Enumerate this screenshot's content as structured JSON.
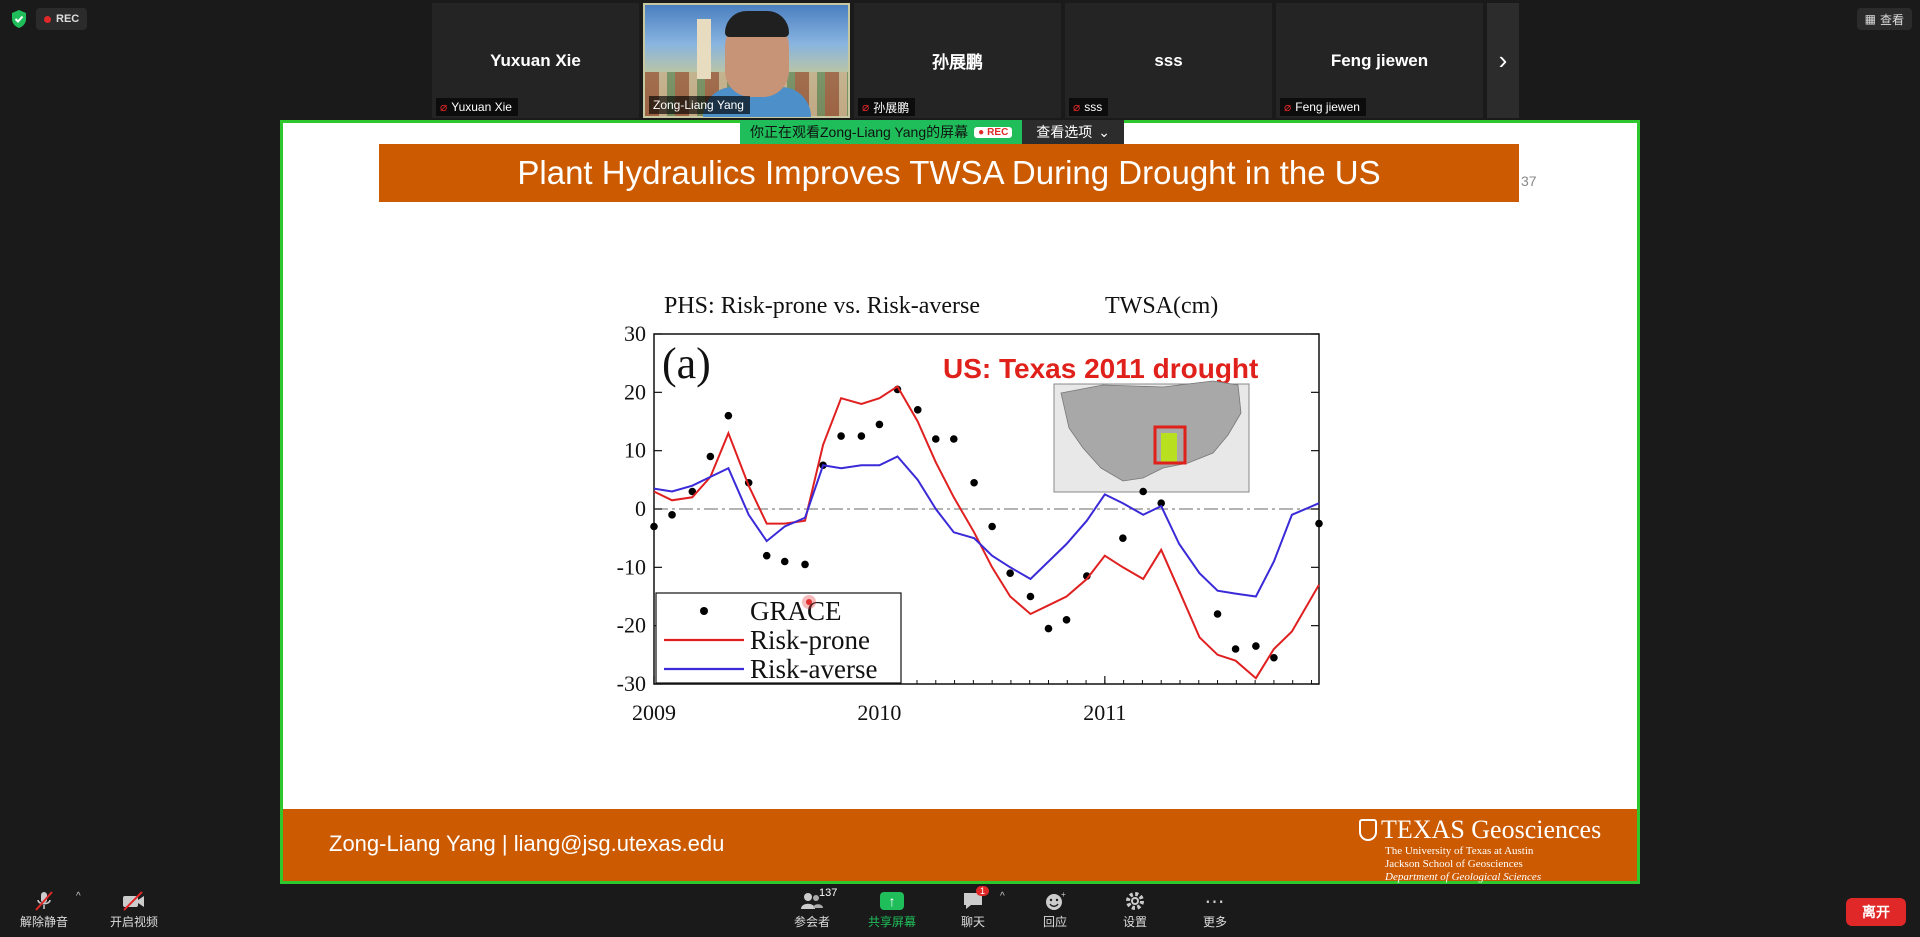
{
  "top": {
    "rec_label": "REC",
    "view_label": "查看"
  },
  "participants": [
    {
      "name": "Yuxuan Xie",
      "label": "Yuxuan Xie"
    },
    {
      "name": "",
      "label": "Zong-Liang Yang"
    },
    {
      "name": "孙展鹏",
      "label": "孙展鹏"
    },
    {
      "name": "sss",
      "label": "sss"
    },
    {
      "name": "Feng jiewen",
      "label": "Feng jiewen"
    }
  ],
  "banner": {
    "viewing_text": "你正在观看Zong-Liang Yang的屏幕",
    "rec": "REC",
    "options": "查看选项"
  },
  "slide": {
    "title": "Plant Hydraulics Improves TWSA During Drought in the US",
    "page_number": "37",
    "footer_contact": "Zong-Liang Yang  |  liang@jsg.utexas.edu",
    "logo_main": "TEXAS Geosciences",
    "logo_lines": [
      "The University of Texas at Austin",
      "Jackson School of Geosciences",
      "Department of Geological Sciences"
    ]
  },
  "chart_data": {
    "type": "line",
    "title": "PHS: Risk-prone vs. Risk-averse",
    "unit_label": "TWSA(cm)",
    "panel_label": "(a)",
    "inset_label": "US: Texas 2011 drought",
    "xlim": [
      2009.0,
      2011.95
    ],
    "ylim": [
      -30,
      30
    ],
    "xticks": [
      "2009",
      "2010",
      "2011"
    ],
    "yticks": [
      "30",
      "20",
      "10",
      "0",
      "-10",
      "-20",
      "-30"
    ],
    "zero_line": true,
    "colors": {
      "GRACE": "#000000",
      "Risk-prone": "#e02020",
      "Risk-averse": "#3a2ad8"
    },
    "series": [
      {
        "name": "GRACE",
        "style": "points",
        "x": [
          2009.0,
          2009.08,
          2009.17,
          2009.25,
          2009.33,
          2009.42,
          2009.5,
          2009.58,
          2009.67,
          2009.75,
          2009.83,
          2009.92,
          2010.0,
          2010.08,
          2010.17,
          2010.25,
          2010.33,
          2010.42,
          2010.5,
          2010.58,
          2010.67,
          2010.75,
          2010.83,
          2010.92,
          2011.08,
          2011.17,
          2011.25,
          2011.5,
          2011.58,
          2011.67,
          2011.75,
          2011.95
        ],
        "y": [
          -3,
          -1,
          3,
          9,
          16,
          4.5,
          -8,
          -9,
          -9.5,
          7.5,
          12.5,
          12.5,
          14.5,
          20.5,
          17,
          12,
          12,
          4.5,
          -3,
          -11,
          -15,
          -20.5,
          -19,
          -11.5,
          -5,
          3,
          1,
          -18,
          -24,
          -23.5,
          -25.5,
          -2.5
        ]
      },
      {
        "name": "Risk-prone",
        "style": "line",
        "x": [
          2009.0,
          2009.08,
          2009.17,
          2009.25,
          2009.33,
          2009.42,
          2009.5,
          2009.58,
          2009.67,
          2009.75,
          2009.83,
          2009.92,
          2010.0,
          2010.08,
          2010.17,
          2010.25,
          2010.33,
          2010.42,
          2010.5,
          2010.58,
          2010.67,
          2010.75,
          2010.83,
          2010.92,
          2011.0,
          2011.08,
          2011.17,
          2011.25,
          2011.33,
          2011.42,
          2011.5,
          2011.58,
          2011.67,
          2011.75,
          2011.83,
          2011.95
        ],
        "y": [
          3,
          1.5,
          2,
          5.5,
          13,
          4,
          -2.5,
          -2.5,
          -2,
          11,
          19,
          18,
          19,
          21,
          15,
          8,
          2,
          -4,
          -10,
          -15,
          -18,
          -16.5,
          -15,
          -12,
          -8,
          -10,
          -12,
          -7,
          -14,
          -22,
          -25,
          -26,
          -29,
          -24,
          -21,
          -13
        ]
      },
      {
        "name": "Risk-averse",
        "style": "line",
        "x": [
          2009.0,
          2009.08,
          2009.17,
          2009.25,
          2009.33,
          2009.42,
          2009.5,
          2009.58,
          2009.67,
          2009.75,
          2009.83,
          2009.92,
          2010.0,
          2010.08,
          2010.17,
          2010.25,
          2010.33,
          2010.42,
          2010.5,
          2010.58,
          2010.67,
          2010.75,
          2010.83,
          2010.92,
          2011.0,
          2011.08,
          2011.17,
          2011.25,
          2011.33,
          2011.42,
          2011.5,
          2011.58,
          2011.67,
          2011.75,
          2011.83,
          2011.95
        ],
        "y": [
          3.5,
          3,
          4,
          5.5,
          7,
          -1,
          -5.5,
          -3,
          -1.5,
          7.5,
          7,
          7.5,
          7.5,
          9,
          5,
          0,
          -4,
          -5,
          -8,
          -10,
          -12,
          -9,
          -6,
          -2,
          2.5,
          1,
          -1,
          0.5,
          -6,
          -11,
          -14,
          -14.5,
          -15,
          -9,
          -1,
          1
        ]
      }
    ]
  },
  "toolbar": {
    "unmute": "解除静音",
    "start_video": "开启视频",
    "participants": "参会者",
    "participants_count": "137",
    "share": "共享屏幕",
    "chat": "聊天",
    "chat_badge": "1",
    "reactions": "回应",
    "settings": "设置",
    "more": "更多",
    "leave": "离开"
  }
}
